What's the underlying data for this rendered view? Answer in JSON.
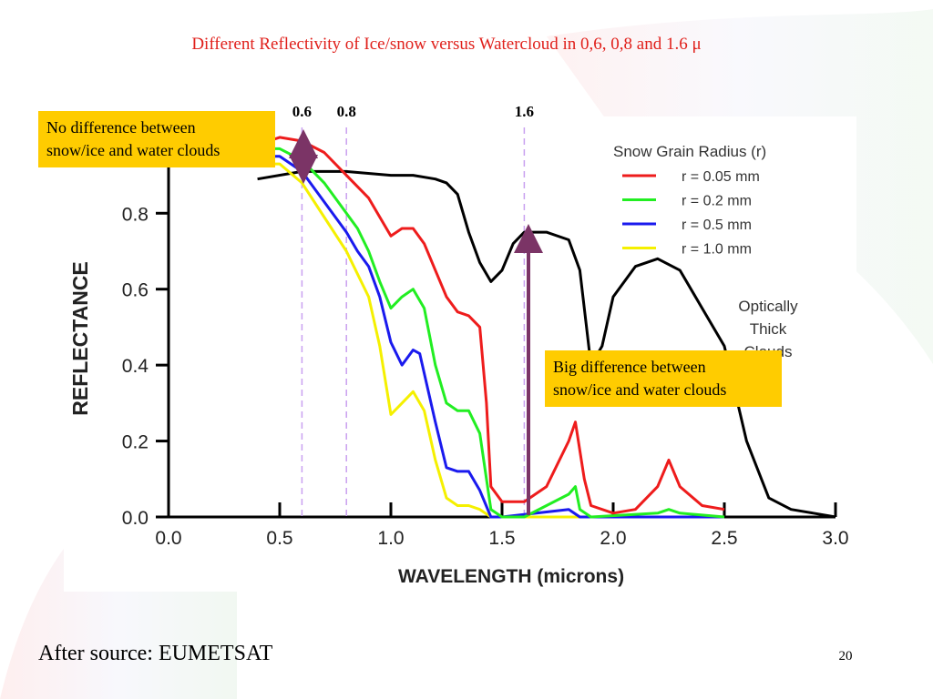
{
  "slide": {
    "title": "Different Reflectivity of  Ice/snow versus Watercloud in 0,6, 0,8 and 1.6 μ",
    "source": "After source: EUMETSAT",
    "page_number": "20"
  },
  "chart_data": {
    "type": "line",
    "x_label": "WAVELENGTH (microns)",
    "y_label": "REFLECTANCE",
    "legend_title": "Snow Grain Radius (r)",
    "xlim": [
      0,
      3
    ],
    "ylim": [
      0,
      1.05
    ],
    "xticks": [
      {
        "value": 0,
        "label": "0.0"
      },
      0.5,
      {
        "value": 1,
        "label": "1.0"
      },
      1.5,
      {
        "value": 2,
        "label": "2.0"
      },
      2.5,
      {
        "value": 3,
        "label": "3.0"
      }
    ],
    "yticks": [
      {
        "value": 0,
        "label": "0.0"
      },
      0.2,
      0.4,
      0.6,
      0.8
    ],
    "markers": [
      0.6,
      0.8,
      1.6
    ],
    "marker_color": "#c9a0f0",
    "series": [
      {
        "name": "r = 0.05 mm",
        "color": "#ee1c1c",
        "x": [
          0.45,
          0.5,
          0.6,
          0.7,
          0.8,
          0.9,
          0.95,
          1.0,
          1.05,
          1.1,
          1.15,
          1.2,
          1.25,
          1.3,
          1.35,
          1.4,
          1.43,
          1.45,
          1.5,
          1.6,
          1.7,
          1.8,
          1.83,
          1.87,
          1.9,
          2.0,
          2.1,
          2.2,
          2.25,
          2.3,
          2.4,
          2.5
        ],
        "values": [
          0.99,
          1.0,
          0.99,
          0.96,
          0.9,
          0.84,
          0.79,
          0.74,
          0.76,
          0.76,
          0.72,
          0.65,
          0.58,
          0.54,
          0.53,
          0.5,
          0.3,
          0.08,
          0.04,
          0.04,
          0.08,
          0.2,
          0.25,
          0.1,
          0.03,
          0.01,
          0.02,
          0.08,
          0.15,
          0.08,
          0.03,
          0.02
        ]
      },
      {
        "name": "r = 0.2 mm",
        "color": "#22ee22",
        "x": [
          0.45,
          0.5,
          0.6,
          0.7,
          0.8,
          0.85,
          0.9,
          0.95,
          1.0,
          1.05,
          1.1,
          1.15,
          1.2,
          1.25,
          1.3,
          1.35,
          1.4,
          1.43,
          1.45,
          1.5,
          1.6,
          1.7,
          1.8,
          1.83,
          1.85,
          1.9,
          2.2,
          2.25,
          2.3,
          2.5
        ],
        "values": [
          0.97,
          0.97,
          0.94,
          0.88,
          0.8,
          0.76,
          0.7,
          0.62,
          0.55,
          0.58,
          0.6,
          0.55,
          0.4,
          0.3,
          0.28,
          0.28,
          0.22,
          0.1,
          0.02,
          0,
          0,
          0.03,
          0.06,
          0.08,
          0.02,
          0,
          0.01,
          0.02,
          0.01,
          0
        ]
      },
      {
        "name": "r = 0.5 mm",
        "color": "#1a1aee",
        "x": [
          0.45,
          0.5,
          0.6,
          0.7,
          0.8,
          0.85,
          0.9,
          0.95,
          1.0,
          1.05,
          1.1,
          1.13,
          1.2,
          1.25,
          1.3,
          1.35,
          1.4,
          1.45,
          1.5,
          1.8,
          1.85,
          2.5
        ],
        "values": [
          0.95,
          0.95,
          0.91,
          0.83,
          0.75,
          0.7,
          0.66,
          0.58,
          0.46,
          0.4,
          0.44,
          0.43,
          0.25,
          0.13,
          0.12,
          0.12,
          0.07,
          0,
          0,
          0.02,
          0,
          0
        ]
      },
      {
        "name": "r = 1.0 mm",
        "color": "#f5f000",
        "x": [
          0.45,
          0.5,
          0.6,
          0.7,
          0.8,
          0.9,
          0.95,
          1.0,
          1.05,
          1.1,
          1.15,
          1.2,
          1.25,
          1.3,
          1.35,
          1.4,
          1.45,
          2.5
        ],
        "values": [
          0.93,
          0.93,
          0.88,
          0.79,
          0.7,
          0.58,
          0.45,
          0.27,
          0.3,
          0.33,
          0.28,
          0.15,
          0.05,
          0.03,
          0.03,
          0.02,
          0,
          0
        ]
      },
      {
        "color": "#000000",
        "legend": false,
        "x": [
          0.4,
          0.6,
          0.8,
          1.0,
          1.1,
          1.2,
          1.25,
          1.3,
          1.35,
          1.4,
          1.45,
          1.5,
          1.55,
          1.6,
          1.7,
          1.8,
          1.85,
          1.9,
          1.95,
          2.0,
          2.1,
          2.2,
          2.3,
          2.4,
          2.5,
          2.6,
          2.7,
          2.8,
          2.9,
          3.0
        ],
        "values": [
          0.89,
          0.91,
          0.91,
          0.9,
          0.9,
          0.89,
          0.88,
          0.85,
          0.75,
          0.67,
          0.62,
          0.65,
          0.72,
          0.75,
          0.75,
          0.73,
          0.65,
          0.4,
          0.45,
          0.58,
          0.66,
          0.68,
          0.65,
          0.55,
          0.45,
          0.2,
          0.05,
          0.02,
          0.01,
          0
        ]
      }
    ],
    "cloud_label": [
      "Optically",
      "Thick",
      "Clouds"
    ],
    "annotations": [
      {
        "lines": [
          "No difference between",
          "snow/ice and water clouds"
        ]
      },
      {
        "lines": [
          "Big difference between",
          "snow/ice and water clouds"
        ]
      }
    ]
  }
}
